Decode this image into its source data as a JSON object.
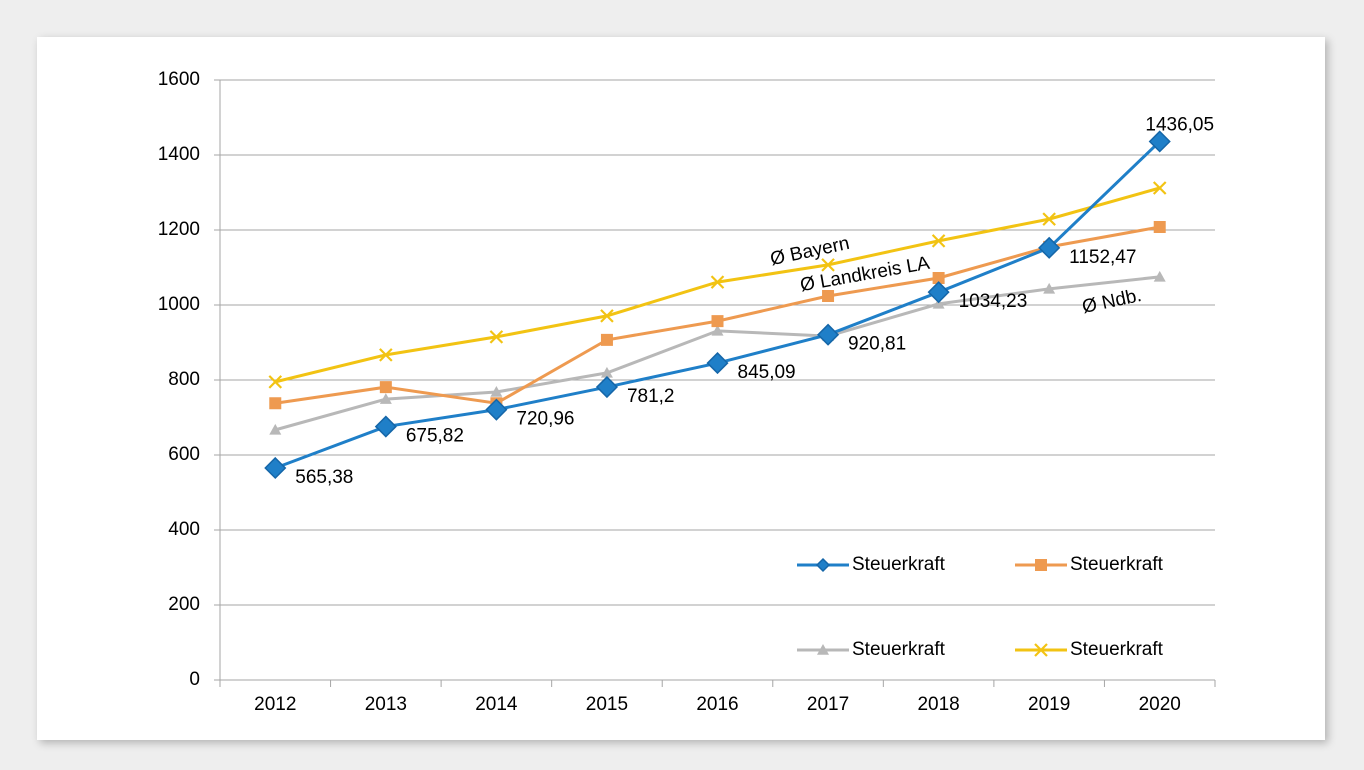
{
  "chart_data": {
    "type": "line",
    "categories": [
      "2012",
      "2013",
      "2014",
      "2015",
      "2016",
      "2017",
      "2018",
      "2019",
      "2020"
    ],
    "series": [
      {
        "name": "Steuerkraft",
        "color": "#1f7fc8",
        "marker": "diamond",
        "values": [
          565.38,
          675.82,
          720.96,
          781.2,
          845.09,
          920.81,
          1034.23,
          1152.47,
          1436.05
        ],
        "value_labels": [
          "565,38",
          "675,82",
          "720,96",
          "781,2",
          "845,09",
          "920,81",
          "1034,23",
          "1152,47",
          "1436,05"
        ]
      },
      {
        "name": "Steuerkraft",
        "color": "#ee9a50",
        "marker": "square",
        "values": [
          738,
          781,
          738,
          907,
          957,
          1024,
          1072,
          1155,
          1208
        ]
      },
      {
        "name": "Steuerkraft",
        "color": "#b8b8b8",
        "marker": "triangle",
        "values": [
          667,
          749,
          768,
          819,
          931,
          917,
          1003,
          1043,
          1075
        ]
      },
      {
        "name": "Steuerkraft",
        "color": "#f2c313",
        "marker": "x",
        "values": [
          795,
          867,
          915,
          971,
          1061,
          1107,
          1171,
          1229,
          1312
        ]
      }
    ],
    "annotations": [
      "Ø Bayern",
      "Ø Landkreis LA",
      "Ø Ndb."
    ],
    "ylim": [
      0,
      1600
    ],
    "yticks": [
      0,
      200,
      400,
      600,
      800,
      1000,
      1200,
      1400,
      1600
    ],
    "grid": true
  }
}
